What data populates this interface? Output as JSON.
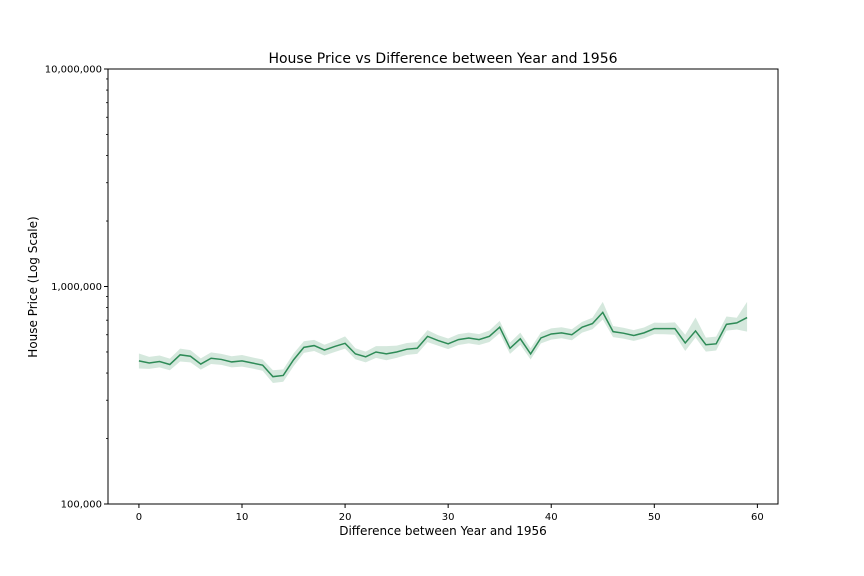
{
  "chart_data": {
    "type": "line",
    "title": "House Price vs Difference between Year and 1956",
    "xlabel": "Difference between Year and 1956",
    "ylabel": "House Price (Log Scale)",
    "yscale": "log",
    "xlim": [
      -3,
      62
    ],
    "ylim": [
      100000,
      10000000
    ],
    "xticks": [
      0,
      10,
      20,
      30,
      40,
      50,
      60
    ],
    "yticks": [
      100000,
      1000000,
      10000000
    ],
    "ytick_labels": [
      "100,000",
      "1,000,000",
      "10,000,000"
    ],
    "xtick_labels": [
      "0",
      "10",
      "20",
      "30",
      "40",
      "50",
      "60"
    ],
    "grid": false,
    "line_color": "#2e8b57",
    "band_color": "#2e8b57",
    "series": [
      {
        "x": [
          0,
          1,
          2,
          3,
          4,
          5,
          6,
          7,
          8,
          9,
          10,
          11,
          12,
          13,
          14,
          15,
          16,
          17,
          18,
          19,
          20,
          21,
          22,
          23,
          24,
          25,
          26,
          27,
          28,
          29,
          30,
          31,
          32,
          33,
          34,
          35,
          36,
          37,
          38,
          39,
          40,
          41,
          42,
          43,
          44,
          45,
          46,
          47,
          48,
          49,
          50,
          51,
          52,
          53,
          54,
          55,
          56,
          57,
          58,
          59
        ],
        "y": [
          455000,
          445000,
          452000,
          438000,
          485000,
          478000,
          440000,
          468000,
          462000,
          450000,
          455000,
          445000,
          435000,
          385000,
          390000,
          460000,
          525000,
          535000,
          510000,
          530000,
          548000,
          490000,
          475000,
          500000,
          490000,
          500000,
          515000,
          520000,
          590000,
          565000,
          545000,
          570000,
          580000,
          570000,
          590000,
          650000,
          520000,
          575000,
          490000,
          580000,
          605000,
          612000,
          600000,
          650000,
          675000,
          760000,
          620000,
          610000,
          595000,
          612000,
          640000,
          640000,
          640000,
          550000,
          625000,
          540000,
          545000,
          670000,
          680000,
          720000
        ],
        "lower": [
          420000,
          418000,
          425000,
          412000,
          452000,
          448000,
          415000,
          440000,
          436000,
          425000,
          428000,
          420000,
          410000,
          360000,
          365000,
          430000,
          495000,
          505000,
          482000,
          500000,
          518000,
          463000,
          448000,
          470000,
          458000,
          470000,
          485000,
          490000,
          555000,
          535000,
          515000,
          538000,
          548000,
          538000,
          556000,
          610000,
          490000,
          540000,
          462000,
          548000,
          570000,
          578000,
          566000,
          614000,
          636000,
          705000,
          585000,
          576000,
          562000,
          578000,
          604000,
          603000,
          600000,
          505000,
          583000,
          502000,
          508000,
          627000,
          634000,
          620000
        ],
        "upper": [
          492000,
          475000,
          482000,
          466000,
          518000,
          510000,
          467000,
          498000,
          490000,
          478000,
          484000,
          472000,
          462000,
          412000,
          416000,
          492000,
          560000,
          568000,
          540000,
          562000,
          590000,
          520000,
          502000,
          532000,
          532000,
          535000,
          550000,
          555000,
          630000,
          598000,
          577000,
          604000,
          614000,
          604000,
          628000,
          695000,
          552000,
          614000,
          520000,
          615000,
          642000,
          650000,
          636000,
          688000,
          718000,
          850000,
          658000,
          646000,
          630000,
          648000,
          682000,
          680000,
          684000,
          600000,
          720000,
          582000,
          588000,
          728000,
          718000,
          850000
        ]
      }
    ]
  }
}
